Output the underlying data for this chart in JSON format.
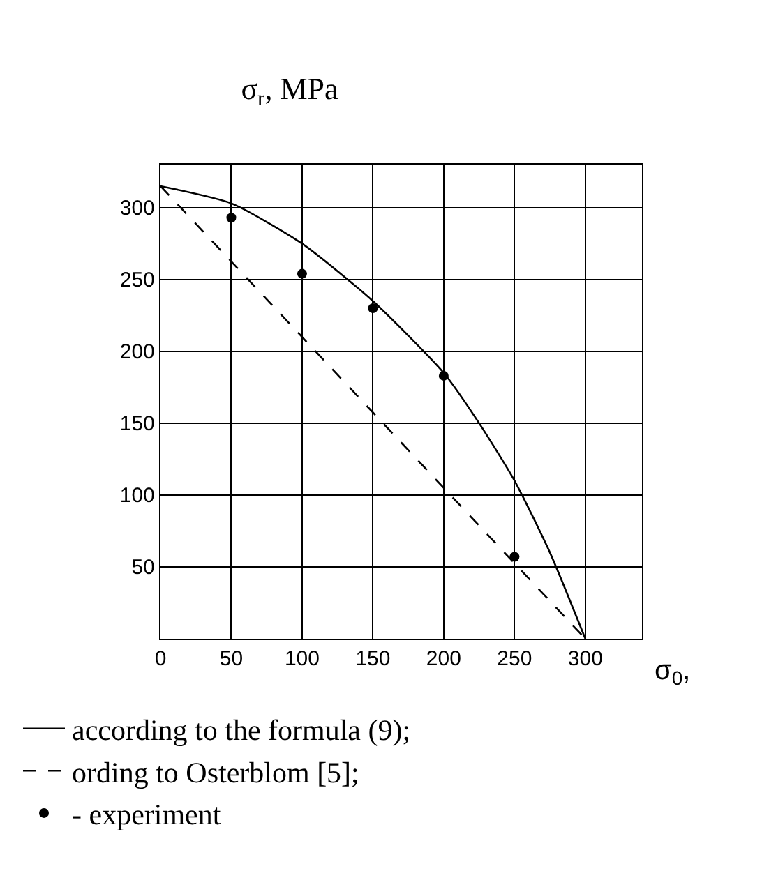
{
  "chart_data": {
    "type": "line",
    "title": "σ$_{r}$, MPa",
    "xlabel": "σ$_{0}$,",
    "xlim": [
      0,
      340
    ],
    "ylim": [
      0,
      330
    ],
    "xticks": [
      0,
      50,
      100,
      150,
      200,
      250,
      300
    ],
    "yticks": [
      50,
      100,
      150,
      200,
      250,
      300
    ],
    "grid": true,
    "legend": "bottom",
    "series": [
      {
        "name": "according to the formula (9);",
        "color": "#000000",
        "line_style": "solid",
        "marker": "none",
        "x": [
          0,
          50,
          100,
          150,
          200,
          225,
          250,
          275,
          300
        ],
        "values": [
          315,
          303,
          275,
          235,
          185,
          150,
          110,
          60,
          0
        ]
      },
      {
        "name": "ording to Osterblom [5];",
        "color": "#000000",
        "line_style": "dashed",
        "marker": "none",
        "x": [
          0,
          300
        ],
        "values": [
          315,
          0
        ]
      },
      {
        "name": "- experiment",
        "type": "scatter",
        "color": "#000000",
        "marker": "circle",
        "x": [
          50,
          100,
          150,
          200,
          250
        ],
        "values": [
          293,
          254,
          230,
          183,
          57
        ]
      }
    ]
  }
}
